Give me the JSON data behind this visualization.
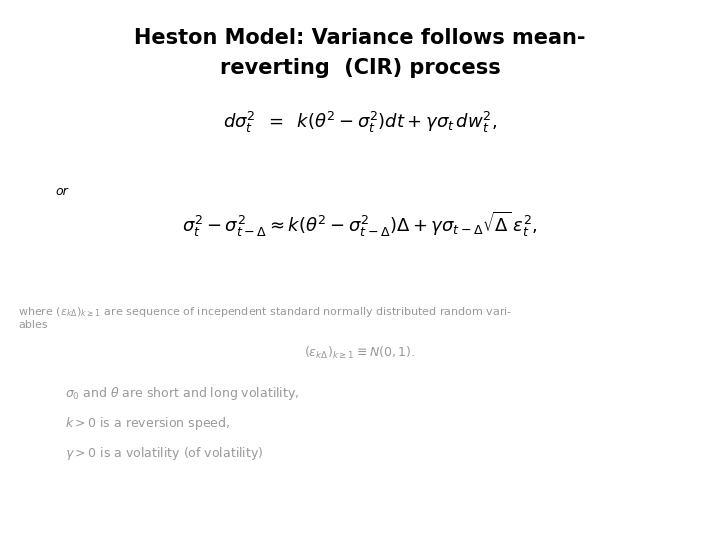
{
  "title_line1": "Heston Model: Variance follows mean-",
  "title_line2": "reverting  (CIR) process",
  "title_fontsize": 15,
  "eq1_fontsize": 13,
  "eq2_fontsize": 13,
  "small_fontsize": 8,
  "medium_fontsize": 9,
  "or_fontsize": 9,
  "background_color": "#ffffff",
  "text_color": "#000000",
  "gray_color": "#999999"
}
